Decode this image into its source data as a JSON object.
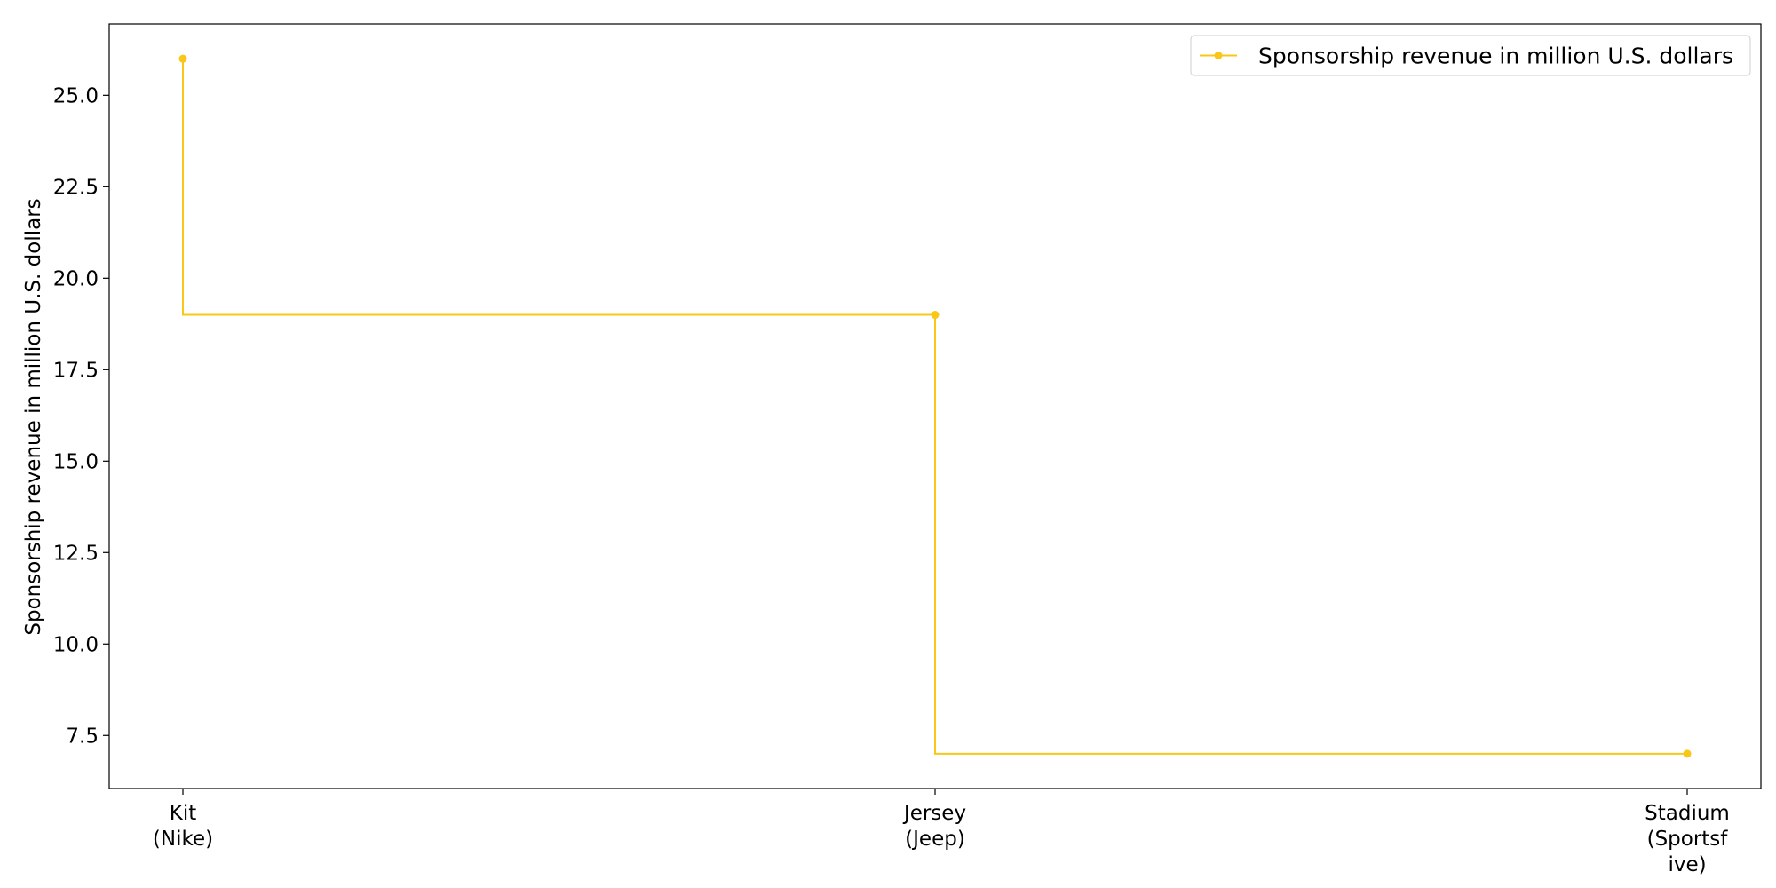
{
  "chart_data": {
    "type": "line",
    "step": "post",
    "categories": [
      "Kit\n(Nike)",
      "Jersey\n(Jeep)",
      "Stadium\n(Sportsf\nive)"
    ],
    "series": [
      {
        "name": "Sponsorship revenue in million U.S. dollars",
        "values": [
          26,
          19,
          7
        ],
        "color": "#f9c718"
      }
    ],
    "title": "",
    "xlabel": "",
    "ylabel": "Sponsorship revenue in million U.S. dollars",
    "ylim": [
      6.05,
      26.95
    ],
    "yticks": [
      7.5,
      10.0,
      12.5,
      15.0,
      17.5,
      20.0,
      22.5,
      25.0
    ],
    "grid": false,
    "legend": "top-right",
    "marker": "circle"
  }
}
